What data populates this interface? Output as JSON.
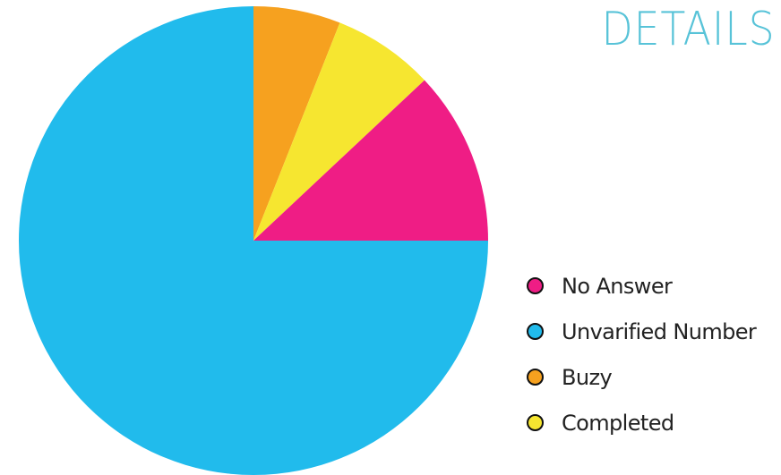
{
  "chart_data": {
    "type": "pie",
    "title": "DETAILS",
    "legend_position": "bottom-right",
    "slices": [
      {
        "label": "Buzy",
        "value": 6,
        "color": "#f6a11f"
      },
      {
        "label": "Completed",
        "value": 7,
        "color": "#f6e630"
      },
      {
        "label": "No Answer",
        "value": 12,
        "color": "#ef1d85"
      },
      {
        "label": "Unvarified Number",
        "value": 75,
        "color": "#21bbec"
      }
    ],
    "legend": [
      {
        "label": "No Answer",
        "color": "#ef1d85"
      },
      {
        "label": "Unvarified Number",
        "color": "#21bbec"
      },
      {
        "label": "Buzy",
        "color": "#f6a11f"
      },
      {
        "label": "Completed",
        "color": "#f6e630"
      }
    ]
  }
}
